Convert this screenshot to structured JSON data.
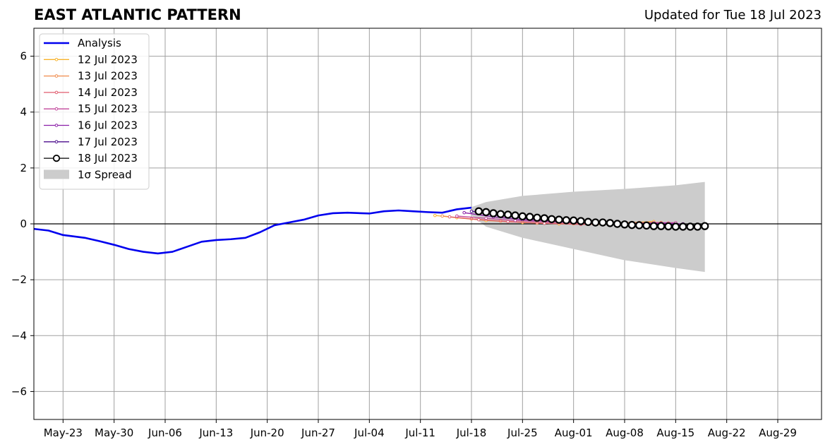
{
  "header": {
    "title": "EAST ATLANTIC PATTERN",
    "updated": "Updated for Tue 18 Jul 2023"
  },
  "chart_data": {
    "type": "line",
    "title": "EAST ATLANTIC PATTERN",
    "subtitle": "Updated for Tue 18 Jul 2023",
    "xlabel": "",
    "ylabel": "",
    "xlim": [
      "2023-05-19",
      "2023-09-04"
    ],
    "ylim": [
      -7,
      7
    ],
    "grid": true,
    "legend_position": "top-left",
    "x_ticks": [
      "May-23",
      "May-30",
      "Jun-06",
      "Jun-13",
      "Jun-20",
      "Jun-27",
      "Jul-04",
      "Jul-11",
      "Jul-18",
      "Jul-25",
      "Aug-01",
      "Aug-08",
      "Aug-15",
      "Aug-22",
      "Aug-29"
    ],
    "x_tick_dates": [
      "2023-05-23",
      "2023-05-30",
      "2023-06-06",
      "2023-06-13",
      "2023-06-20",
      "2023-06-27",
      "2023-07-04",
      "2023-07-11",
      "2023-07-18",
      "2023-07-25",
      "2023-08-01",
      "2023-08-08",
      "2023-08-15",
      "2023-08-22",
      "2023-08-29"
    ],
    "y_ticks": [
      -6,
      -4,
      -2,
      0,
      2,
      4,
      6
    ],
    "y_tick_labels": [
      "−6",
      "−4",
      "−2",
      "0",
      "2",
      "4",
      "6"
    ],
    "zero_line": 0,
    "analysis": {
      "name": "Analysis",
      "color": "#0000ee",
      "points": [
        [
          "2023-05-19",
          -0.18
        ],
        [
          "2023-05-21",
          -0.24
        ],
        [
          "2023-05-23",
          -0.4
        ],
        [
          "2023-05-26",
          -0.5
        ],
        [
          "2023-05-28",
          -0.62
        ],
        [
          "2023-05-30",
          -0.75
        ],
        [
          "2023-06-01",
          -0.9
        ],
        [
          "2023-06-03",
          -1.0
        ],
        [
          "2023-06-05",
          -1.06
        ],
        [
          "2023-06-07",
          -1.0
        ],
        [
          "2023-06-09",
          -0.82
        ],
        [
          "2023-06-11",
          -0.64
        ],
        [
          "2023-06-13",
          -0.58
        ],
        [
          "2023-06-15",
          -0.55
        ],
        [
          "2023-06-17",
          -0.5
        ],
        [
          "2023-06-19",
          -0.3
        ],
        [
          "2023-06-21",
          -0.05
        ],
        [
          "2023-06-23",
          0.05
        ],
        [
          "2023-06-25",
          0.15
        ],
        [
          "2023-06-27",
          0.3
        ],
        [
          "2023-06-29",
          0.38
        ],
        [
          "2023-07-01",
          0.4
        ],
        [
          "2023-07-04",
          0.37
        ],
        [
          "2023-07-06",
          0.45
        ],
        [
          "2023-07-08",
          0.48
        ],
        [
          "2023-07-10",
          0.45
        ],
        [
          "2023-07-12",
          0.42
        ],
        [
          "2023-07-14",
          0.4
        ],
        [
          "2023-07-16",
          0.52
        ],
        [
          "2023-07-18",
          0.58
        ]
      ]
    },
    "spread": {
      "name": "1σ Spread",
      "color": "#cccccc",
      "upper": [
        [
          "2023-07-18",
          0.6
        ],
        [
          "2023-07-20",
          0.78
        ],
        [
          "2023-07-25",
          1.0
        ],
        [
          "2023-08-01",
          1.15
        ],
        [
          "2023-08-08",
          1.25
        ],
        [
          "2023-08-15",
          1.38
        ],
        [
          "2023-08-19",
          1.5
        ]
      ],
      "lower": [
        [
          "2023-07-18",
          0.3
        ],
        [
          "2023-07-20",
          -0.1
        ],
        [
          "2023-07-25",
          -0.5
        ],
        [
          "2023-08-01",
          -0.9
        ],
        [
          "2023-08-08",
          -1.3
        ],
        [
          "2023-08-15",
          -1.58
        ],
        [
          "2023-08-19",
          -1.72
        ]
      ]
    },
    "series": [
      {
        "name": "12 Jul 2023",
        "color": "#f7b32b",
        "points": [
          [
            "2023-07-13",
            0.3
          ],
          [
            "2023-07-16",
            0.22
          ],
          [
            "2023-07-20",
            0.12
          ],
          [
            "2023-07-25",
            0.05
          ],
          [
            "2023-07-30",
            0.0
          ],
          [
            "2023-08-05",
            -0.02
          ],
          [
            "2023-08-09",
            0.05
          ],
          [
            "2023-08-12",
            0.08
          ]
        ]
      },
      {
        "name": "13 Jul 2023",
        "color": "#f08a4b",
        "points": [
          [
            "2023-07-14",
            0.28
          ],
          [
            "2023-07-18",
            0.18
          ],
          [
            "2023-07-22",
            0.1
          ],
          [
            "2023-07-27",
            0.03
          ],
          [
            "2023-08-01",
            0.0
          ],
          [
            "2023-08-06",
            0.02
          ],
          [
            "2023-08-10",
            0.05
          ],
          [
            "2023-08-13",
            0.05
          ]
        ]
      },
      {
        "name": "14 Jul 2023",
        "color": "#e05c6e",
        "points": [
          [
            "2023-07-15",
            0.25
          ],
          [
            "2023-07-19",
            0.15
          ],
          [
            "2023-07-23",
            0.08
          ],
          [
            "2023-07-28",
            0.02
          ],
          [
            "2023-08-02",
            -0.02
          ],
          [
            "2023-08-07",
            0.0
          ],
          [
            "2023-08-11",
            0.02
          ],
          [
            "2023-08-14",
            0.03
          ]
        ]
      },
      {
        "name": "15 Jul 2023",
        "color": "#c2479c",
        "points": [
          [
            "2023-07-16",
            0.28
          ],
          [
            "2023-07-20",
            0.2
          ],
          [
            "2023-07-24",
            0.12
          ],
          [
            "2023-07-29",
            0.06
          ],
          [
            "2023-08-03",
            0.02
          ],
          [
            "2023-08-08",
            0.02
          ],
          [
            "2023-08-12",
            0.04
          ],
          [
            "2023-08-15",
            0.04
          ]
        ]
      },
      {
        "name": "16 Jul 2023",
        "color": "#8b1fa8",
        "points": [
          [
            "2023-07-17",
            0.4
          ],
          [
            "2023-07-21",
            0.25
          ],
          [
            "2023-07-25",
            0.15
          ],
          [
            "2023-07-30",
            0.08
          ],
          [
            "2023-08-04",
            0.03
          ],
          [
            "2023-08-09",
            0.0
          ],
          [
            "2023-08-13",
            0.02
          ],
          [
            "2023-08-16",
            0.0
          ]
        ]
      },
      {
        "name": "17 Jul 2023",
        "color": "#4b0c8c",
        "points": [
          [
            "2023-07-18",
            0.45
          ],
          [
            "2023-07-22",
            0.3
          ],
          [
            "2023-07-26",
            0.18
          ],
          [
            "2023-07-31",
            0.1
          ],
          [
            "2023-08-05",
            0.03
          ],
          [
            "2023-08-10",
            -0.03
          ],
          [
            "2023-08-14",
            -0.03
          ],
          [
            "2023-08-17",
            -0.05
          ]
        ]
      },
      {
        "name": "18 Jul 2023",
        "color": "#000000",
        "marker": "open-circle",
        "points": [
          [
            "2023-07-19",
            0.45
          ],
          [
            "2023-07-20",
            0.42
          ],
          [
            "2023-07-21",
            0.38
          ],
          [
            "2023-07-22",
            0.35
          ],
          [
            "2023-07-23",
            0.33
          ],
          [
            "2023-07-24",
            0.3
          ],
          [
            "2023-07-25",
            0.27
          ],
          [
            "2023-07-26",
            0.25
          ],
          [
            "2023-07-27",
            0.22
          ],
          [
            "2023-07-28",
            0.2
          ],
          [
            "2023-07-29",
            0.17
          ],
          [
            "2023-07-30",
            0.15
          ],
          [
            "2023-07-31",
            0.13
          ],
          [
            "2023-08-01",
            0.12
          ],
          [
            "2023-08-02",
            0.1
          ],
          [
            "2023-08-03",
            0.07
          ],
          [
            "2023-08-04",
            0.05
          ],
          [
            "2023-08-05",
            0.05
          ],
          [
            "2023-08-06",
            0.03
          ],
          [
            "2023-08-07",
            0.0
          ],
          [
            "2023-08-08",
            -0.02
          ],
          [
            "2023-08-09",
            -0.04
          ],
          [
            "2023-08-10",
            -0.05
          ],
          [
            "2023-08-11",
            -0.06
          ],
          [
            "2023-08-12",
            -0.08
          ],
          [
            "2023-08-13",
            -0.08
          ],
          [
            "2023-08-14",
            -0.09
          ],
          [
            "2023-08-15",
            -0.1
          ],
          [
            "2023-08-16",
            -0.1
          ],
          [
            "2023-08-17",
            -0.1
          ],
          [
            "2023-08-18",
            -0.1
          ],
          [
            "2023-08-19",
            -0.08
          ]
        ]
      }
    ]
  }
}
